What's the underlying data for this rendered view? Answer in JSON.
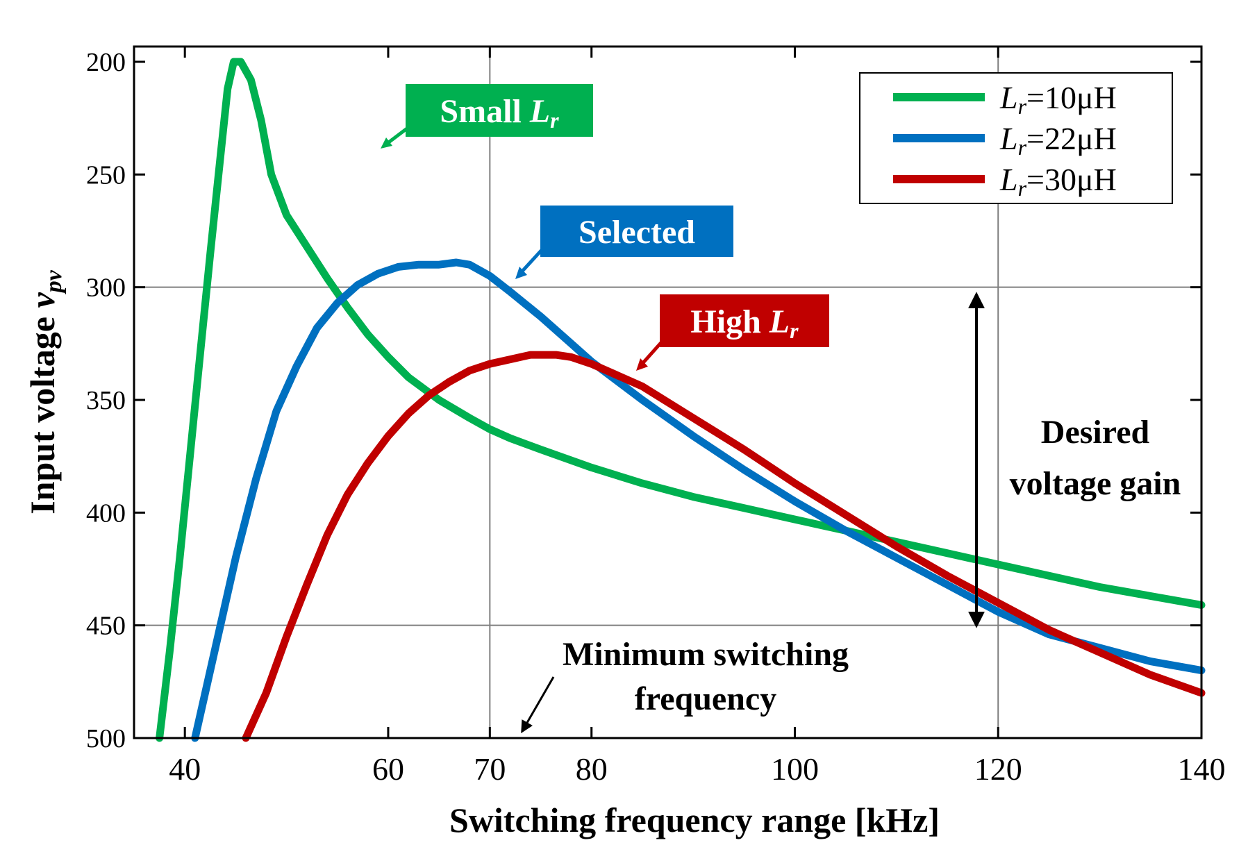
{
  "chart_data": {
    "type": "line",
    "xlabel": "Switching frequency range [kHz]",
    "ylabel": "Input voltage",
    "ylabel_var": "v",
    "ylabel_sub": "pv",
    "xlim": [
      35,
      140
    ],
    "ylim": [
      200,
      500
    ],
    "y_inverted": true,
    "x_ticks": [
      40,
      60,
      70,
      80,
      100,
      120,
      140
    ],
    "y_ticks": [
      200,
      250,
      300,
      350,
      400,
      450,
      500
    ],
    "grid_lines_x": [
      70,
      120
    ],
    "grid_lines_y": [
      300,
      450
    ],
    "legend_position": "top-right",
    "series": [
      {
        "name": "Lr=10μH",
        "color": "#00b050",
        "x": [
          37.5,
          38.5,
          39.5,
          40.5,
          41.5,
          42.5,
          43.5,
          44.2,
          44.8,
          45.5,
          46.5,
          47.5,
          48.5,
          50,
          52,
          54,
          56,
          58,
          60,
          62,
          65,
          68,
          70,
          72,
          75,
          80,
          85,
          90,
          95,
          100,
          105,
          110,
          115,
          120,
          125,
          130,
          135,
          140
        ],
        "y": [
          500,
          462,
          420,
          375,
          330,
          285,
          242,
          212,
          200,
          200,
          208,
          226,
          250,
          268,
          282,
          296,
          309,
          321,
          331,
          340,
          350,
          358,
          363,
          367,
          372,
          380,
          387,
          393,
          398,
          403,
          408,
          413,
          418,
          423,
          428,
          433,
          437,
          441
        ]
      },
      {
        "name": "Lr=22μH",
        "color": "#0070c0",
        "x": [
          41,
          43,
          45,
          47,
          49,
          51,
          53,
          55,
          57,
          59,
          61,
          63,
          65,
          66.7,
          68,
          70,
          72,
          75,
          78,
          80,
          85,
          90,
          95,
          100,
          105,
          110,
          115,
          120,
          125,
          130,
          135,
          140
        ],
        "y": [
          500,
          460,
          420,
          385,
          355,
          335,
          318,
          307,
          299,
          294,
          291,
          290,
          290,
          289,
          290,
          295,
          302,
          313,
          325,
          333,
          350,
          366,
          381,
          395,
          408,
          420,
          432,
          444,
          454,
          460,
          466,
          470
        ]
      },
      {
        "name": "Lr=30μH",
        "color": "#c00000",
        "x": [
          46,
          48,
          50,
          52,
          54,
          56,
          58,
          60,
          62,
          64,
          66,
          68,
          70,
          72,
          74,
          76.5,
          78,
          80,
          85,
          90,
          95,
          100,
          105,
          110,
          115,
          120,
          125,
          130,
          135,
          140
        ],
        "y": [
          500,
          480,
          455,
          432,
          410,
          392,
          378,
          366,
          356,
          348,
          342,
          337,
          334,
          332,
          330,
          330,
          331,
          334,
          344,
          358,
          372,
          387,
          401,
          415,
          428,
          440,
          452,
          462,
          472,
          480
        ]
      }
    ],
    "legend": [
      {
        "var": "L",
        "sub": "r",
        "value": "=10μH"
      },
      {
        "var": "L",
        "sub": "r",
        "value": "=22μH"
      },
      {
        "var": "L",
        "sub": "r",
        "value": "=30μH"
      }
    ],
    "annotations": {
      "small_lr": {
        "label": "Small ",
        "var": "L",
        "sub": "r",
        "color": "#00b050"
      },
      "selected": {
        "label": "Selected",
        "color": "#0070c0"
      },
      "high_lr": {
        "label": "High ",
        "var": "L",
        "sub": "r",
        "color": "#c00000"
      },
      "min_freq": {
        "line1": "Minimum switching",
        "line2": "frequency"
      },
      "gain": {
        "line1": "Desired",
        "line2": "voltage gain"
      }
    }
  }
}
